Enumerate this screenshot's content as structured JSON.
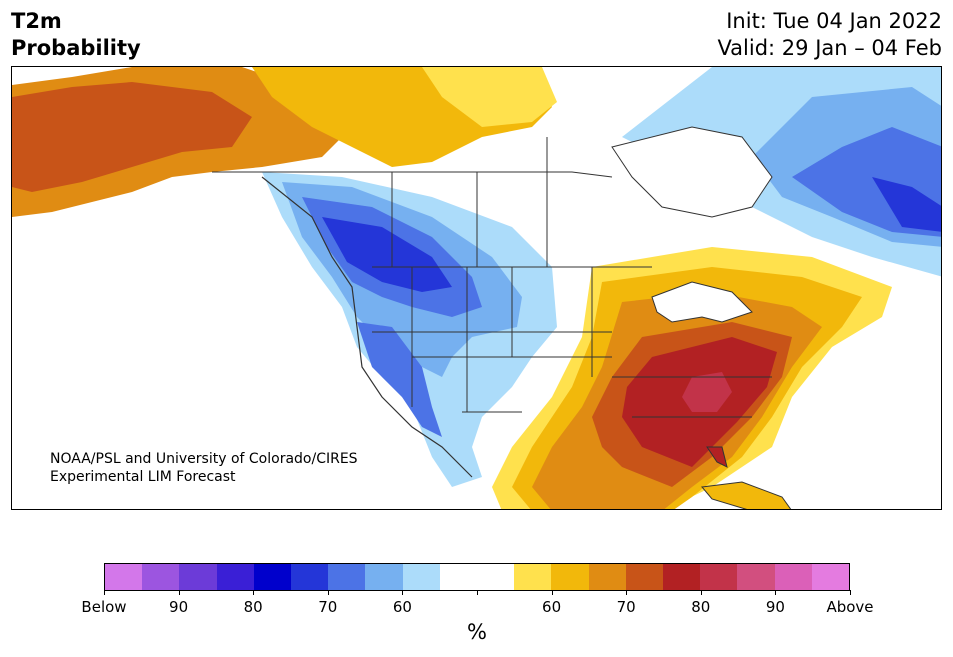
{
  "title": {
    "left_line1": "T2m",
    "left_line2": "Probability",
    "right_line1": "Init: Tue 04 Jan 2022",
    "right_line2": "Valid: 29 Jan – 04 Feb"
  },
  "credit": {
    "line1": "NOAA/PSL and University of Colorado/CIRES",
    "line2": "Experimental LIM Forecast"
  },
  "colorbar": {
    "unit": "%",
    "bins": [
      "#d377ea",
      "#9c55e0",
      "#6c3bd8",
      "#3a1fd6",
      "#0000cc",
      "#2436d8",
      "#4c73e6",
      "#76b0f0",
      "#acdcfa",
      "#ffffff",
      "#ffffff",
      "#ffe14d",
      "#f2b80b",
      "#e08c13",
      "#c85418",
      "#b22123",
      "#c23349",
      "#d24f7f",
      "#db60b8",
      "#e47be0"
    ],
    "tick_labels": [
      "Below",
      "90",
      "80",
      "70",
      "60",
      "",
      "60",
      "70",
      "80",
      "90",
      "Above"
    ]
  },
  "map_colors": {
    "below_60": "#acdcfa",
    "below_70": "#76b0f0",
    "below_80": "#4c73e6",
    "below_90": "#2436d8",
    "above_60": "#ffe14d",
    "above_70": "#f2b80b",
    "above_80": "#e08c13",
    "above_90": "#c85418",
    "above_95": "#b22123",
    "above_99": "#c23349",
    "land": "#ffffff",
    "border": "#333333"
  }
}
